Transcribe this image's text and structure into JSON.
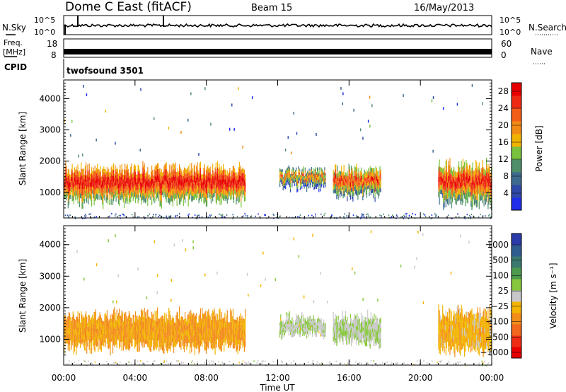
{
  "header": {
    "station": "Dome C East (fitACF)",
    "beam": "Beam 15",
    "date": "16/May/2013"
  },
  "top_panels": {
    "nsky_label": "N.Sky",
    "nsky_ticks": [
      "10^5",
      "10^0"
    ],
    "nsearch_label": "N.Search",
    "nsearch_ticks": [
      "10^5",
      "10^0"
    ],
    "freq_label": "Freq.",
    "freq_unit": "[MHz]",
    "freq_ticks": [
      "18",
      "8"
    ],
    "nave_label": "Nave",
    "nave_ticks": [
      "60",
      "0"
    ],
    "cpid_label": "CPID",
    "cpid_value": "twofsound 3501"
  },
  "colors": {
    "power_scale": [
      "#1f2ee8",
      "#2f49a8",
      "#3d6b8e",
      "#4f8f6a",
      "#79c23f",
      "#f0b400",
      "#f28a16",
      "#f25d18",
      "#ee2a14",
      "#e80000"
    ],
    "velocity_scale": [
      "#2a3aa8",
      "#2f5c8f",
      "#3a7a6e",
      "#4c9a4d",
      "#86c73b",
      "#c8c8c8",
      "#f2b400",
      "#f28c1a",
      "#f2661d",
      "#ee2d14",
      "#e80000"
    ]
  },
  "chart_data": [
    {
      "type": "heatmap",
      "panel": "power",
      "ylabel": "Slant Range [km]",
      "y_ticks": [
        "1000",
        "2000",
        "3000",
        "4000"
      ],
      "ylim": [
        180,
        4600
      ],
      "colorbar_label": "Power [dB]",
      "colorbar_ticks": [
        "4",
        "8",
        "12",
        "16",
        "20",
        "24",
        "28"
      ],
      "clim": [
        0,
        30
      ],
      "x_ticks": [
        "00:00",
        "04:00",
        "08:00",
        "12:00",
        "16:00",
        "20:00",
        "00:00"
      ],
      "xlim_hours": [
        0,
        24
      ],
      "echo_regions": [
        {
          "t_start": 0.0,
          "t_end": 10.2,
          "r_min": 600,
          "r_max": 1900,
          "value": 22
        },
        {
          "t_start": 12.1,
          "t_end": 14.7,
          "r_min": 1100,
          "r_max": 1750,
          "value": 14
        },
        {
          "t_start": 15.1,
          "t_end": 17.8,
          "r_min": 800,
          "r_max": 1800,
          "value": 18
        },
        {
          "t_start": 21.0,
          "t_end": 24.0,
          "r_min": 500,
          "r_max": 2000,
          "value": 20
        }
      ]
    },
    {
      "type": "heatmap",
      "panel": "velocity",
      "ylabel": "Slant Range [km]",
      "y_ticks": [
        "1000",
        "2000",
        "3000",
        "4000"
      ],
      "ylim": [
        180,
        4600
      ],
      "colorbar_label": "Velocity [m s⁻¹]",
      "colorbar_ticks": [
        "1000",
        "500",
        "100",
        "25",
        "−25",
        "−100",
        "−500",
        "−1000"
      ],
      "clim": [
        -1000,
        1000
      ],
      "x_ticks": [
        "00:00",
        "04:00",
        "08:00",
        "12:00",
        "16:00",
        "20:00",
        "00:00"
      ],
      "xlabel": "Time UT",
      "xlim_hours": [
        0,
        24
      ],
      "echo_regions": [
        {
          "t_start": 0.0,
          "t_end": 10.2,
          "r_min": 600,
          "r_max": 1900,
          "value": -300
        },
        {
          "t_start": 12.1,
          "t_end": 14.7,
          "r_min": 1100,
          "r_max": 1750,
          "value": 50
        },
        {
          "t_start": 15.1,
          "t_end": 17.8,
          "r_min": 800,
          "r_max": 1800,
          "value": 80
        },
        {
          "t_start": 21.0,
          "t_end": 24.0,
          "r_min": 500,
          "r_max": 2000,
          "value": -200
        }
      ]
    }
  ]
}
